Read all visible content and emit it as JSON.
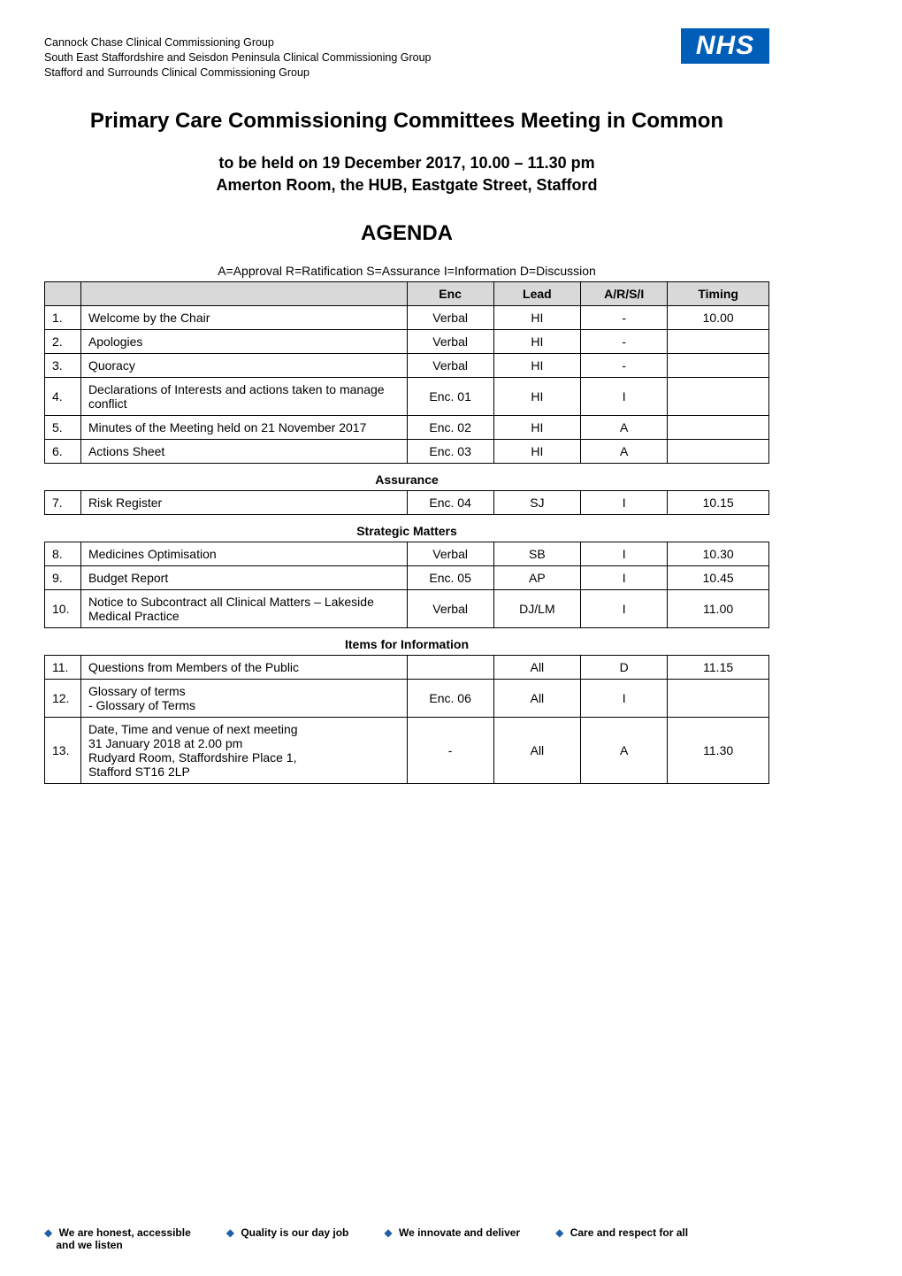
{
  "header": {
    "lines": [
      "Cannock Chase Clinical Commissioning Group",
      "South East Staffordshire and Seisdon Peninsula Clinical Commissioning Group",
      "Stafford and Surrounds Clinical Commissioning Group"
    ]
  },
  "logo": {
    "text": "NHS"
  },
  "title": "Primary Care Commissioning Committees Meeting in Common",
  "subhead_line1": "to be held on 19 December 2017, 10.00 – 11.30  pm",
  "subhead_line2": "Amerton Room, the HUB, Eastgate Street, Stafford",
  "agenda_heading": "AGENDA",
  "key_line": "A=Approval   R=Ratification   S=Assurance   I=Information    D=Discussion",
  "columns": {
    "enc": "Enc",
    "lead": "Lead",
    "arsi": "A/R/S/I",
    "timing": "Timing"
  },
  "main_rows": [
    {
      "num": "1.",
      "item": "Welcome by the Chair",
      "enc": "Verbal",
      "lead": "HI",
      "arsi": "-",
      "timing": "10.00"
    },
    {
      "num": "2.",
      "item": "Apologies",
      "enc": "Verbal",
      "lead": "HI",
      "arsi": "-",
      "timing": ""
    },
    {
      "num": "3.",
      "item": "Quoracy",
      "enc": "Verbal",
      "lead": "HI",
      "arsi": "-",
      "timing": ""
    },
    {
      "num": "4.",
      "item": "Declarations of Interests and actions taken to manage conflict",
      "enc": "Enc. 01",
      "lead": "HI",
      "arsi": "I",
      "timing": ""
    },
    {
      "num": "5.",
      "item": "Minutes of the Meeting held on 21 November 2017",
      "enc": "Enc. 02",
      "lead": "HI",
      "arsi": "A",
      "timing": ""
    },
    {
      "num": "6.",
      "item": "Actions Sheet",
      "enc": "Enc. 03",
      "lead": "HI",
      "arsi": "A",
      "timing": ""
    }
  ],
  "sections": [
    {
      "title": "Assurance",
      "rows": [
        {
          "num": "7.",
          "item": "Risk Register",
          "enc": "Enc. 04",
          "lead": "SJ",
          "arsi": "I",
          "timing": "10.15"
        }
      ]
    },
    {
      "title": "Strategic Matters",
      "rows": [
        {
          "num": "8.",
          "item": "Medicines Optimisation",
          "enc": "Verbal",
          "lead": "SB",
          "arsi": "I",
          "timing": "10.30"
        },
        {
          "num": "9.",
          "item": "Budget Report",
          "enc": "Enc. 05",
          "lead": "AP",
          "arsi": "I",
          "timing": "10.45"
        },
        {
          "num": "10.",
          "item": "Notice to Subcontract all Clinical Matters – Lakeside Medical Practice",
          "enc": "Verbal",
          "lead": "DJ/LM",
          "arsi": "I",
          "timing": "11.00"
        }
      ]
    },
    {
      "title": "Items for Information",
      "rows": [
        {
          "num": "11.",
          "item": "Questions from Members of the Public",
          "enc": "",
          "lead": "All",
          "arsi": "D",
          "timing": "11.15"
        },
        {
          "num": "12.",
          "item": "Glossary of terms",
          "sub": "-   Glossary of Terms",
          "enc": "Enc. 06",
          "lead": "All",
          "arsi": "I",
          "timing": ""
        },
        {
          "num": "13.",
          "item_lines": [
            "Date, Time and venue of next meeting",
            "31 January 2018 at 2.00 pm",
            "Rudyard Room, Staffordshire Place 1,",
            "Stafford ST16 2LP"
          ],
          "enc": "-",
          "lead": "All",
          "arsi": "A",
          "timing": "11.30"
        }
      ]
    }
  ],
  "footer": {
    "items": [
      {
        "line1": "We are honest, accessible",
        "line2": "and we listen"
      },
      {
        "line1": "Quality is our day job"
      },
      {
        "line1": "We innovate and deliver"
      },
      {
        "line1": "Care and respect for all"
      }
    ]
  },
  "colors": {
    "nhs_blue": "#005eb8",
    "diamond_blue": "#1f5fa8",
    "table_header_bg": "#d9d9d9",
    "border": "#000000",
    "text": "#000000"
  },
  "col_widths_pct": {
    "num": 5,
    "item": 45,
    "enc": 12,
    "lead": 12,
    "arsi": 12,
    "timing": 14
  }
}
